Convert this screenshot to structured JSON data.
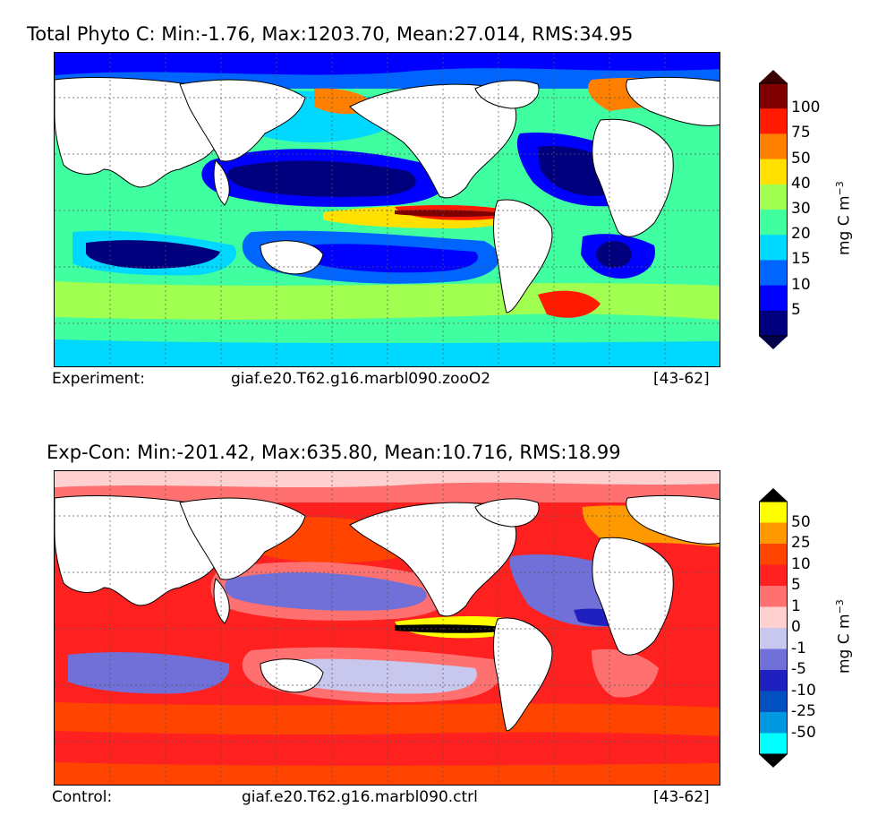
{
  "top": {
    "title": "Total Phyto C: Min:-1.76, Max:1203.70, Mean:27.014, RMS:34.95",
    "footer_left": "Experiment:",
    "footer_mid": "giaf.e20.T62.g16.marbl090.zooO2",
    "footer_right": "[43-62]",
    "colorbar": {
      "labels": [
        "100",
        "75",
        "50",
        "40",
        "30",
        "20",
        "15",
        "10",
        "5"
      ],
      "colors": [
        "#7f0000",
        "#ff1a00",
        "#ff8000",
        "#ffe000",
        "#a0ff50",
        "#40ffa0",
        "#00d8ff",
        "#0064ff",
        "#0000ff",
        "#00007f"
      ],
      "over_color": "#3a0000",
      "under_color": "#00004a",
      "unit": "mg C m",
      "unit_sup": "−3"
    }
  },
  "bottom": {
    "title": "Exp-Con: Min:-201.42, Max:635.80, Mean:10.716, RMS:18.99",
    "footer_left": "Control:",
    "footer_mid": "giaf.e20.T62.g16.marbl090.ctrl",
    "footer_right": "[43-62]",
    "colorbar": {
      "labels": [
        "50",
        "25",
        "10",
        "5",
        "1",
        "0",
        "-1",
        "-5",
        "-10",
        "-25",
        "-50"
      ],
      "colors": [
        "#ffff00",
        "#ff9900",
        "#ff4400",
        "#ff2020",
        "#ff7070",
        "#ffd0d0",
        "#c8c8ee",
        "#7070d8",
        "#2020c0",
        "#0050c0",
        "#0098e0",
        "#00ffff"
      ],
      "over_color": "#000000",
      "under_color": "#000000",
      "unit": "mg C m",
      "unit_sup": "−3"
    }
  }
}
